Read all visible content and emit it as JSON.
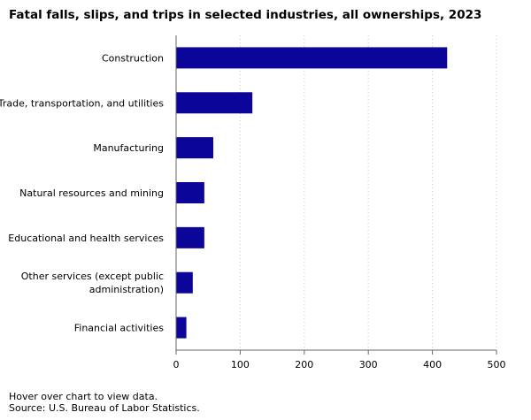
{
  "title": "Fatal falls, slips, and trips in selected industries, all ownerships, 2023",
  "hover_note": "Hover over chart to view data.",
  "source_note": "Source: U.S. Bureau of Labor Statistics.",
  "colors": {
    "bar": "#0c0599",
    "grid": "#c8c8c8",
    "axis": "#666666"
  },
  "chart_data": {
    "type": "bar",
    "orientation": "horizontal",
    "categories": [
      "Construction",
      "Trade, transportation, and utilities",
      "Manufacturing",
      "Natural resources and mining",
      "Educational and health services",
      "Other services (except public administration)",
      "Financial activities"
    ],
    "category_label_lines": [
      [
        "Construction"
      ],
      [
        "Trade, transportation, and utilities"
      ],
      [
        "Manufacturing"
      ],
      [
        "Natural resources and mining"
      ],
      [
        "Educational and health services"
      ],
      [
        "Other services (except public",
        "administration)"
      ],
      [
        "Financial activities"
      ]
    ],
    "values": [
      423,
      119,
      58,
      44,
      44,
      26,
      16
    ],
    "xlim": [
      0,
      500
    ],
    "xticks": [
      0,
      100,
      200,
      300,
      400,
      500
    ],
    "xlabel": "",
    "ylabel": "",
    "grid": "vertical dotted",
    "legend": "none"
  }
}
